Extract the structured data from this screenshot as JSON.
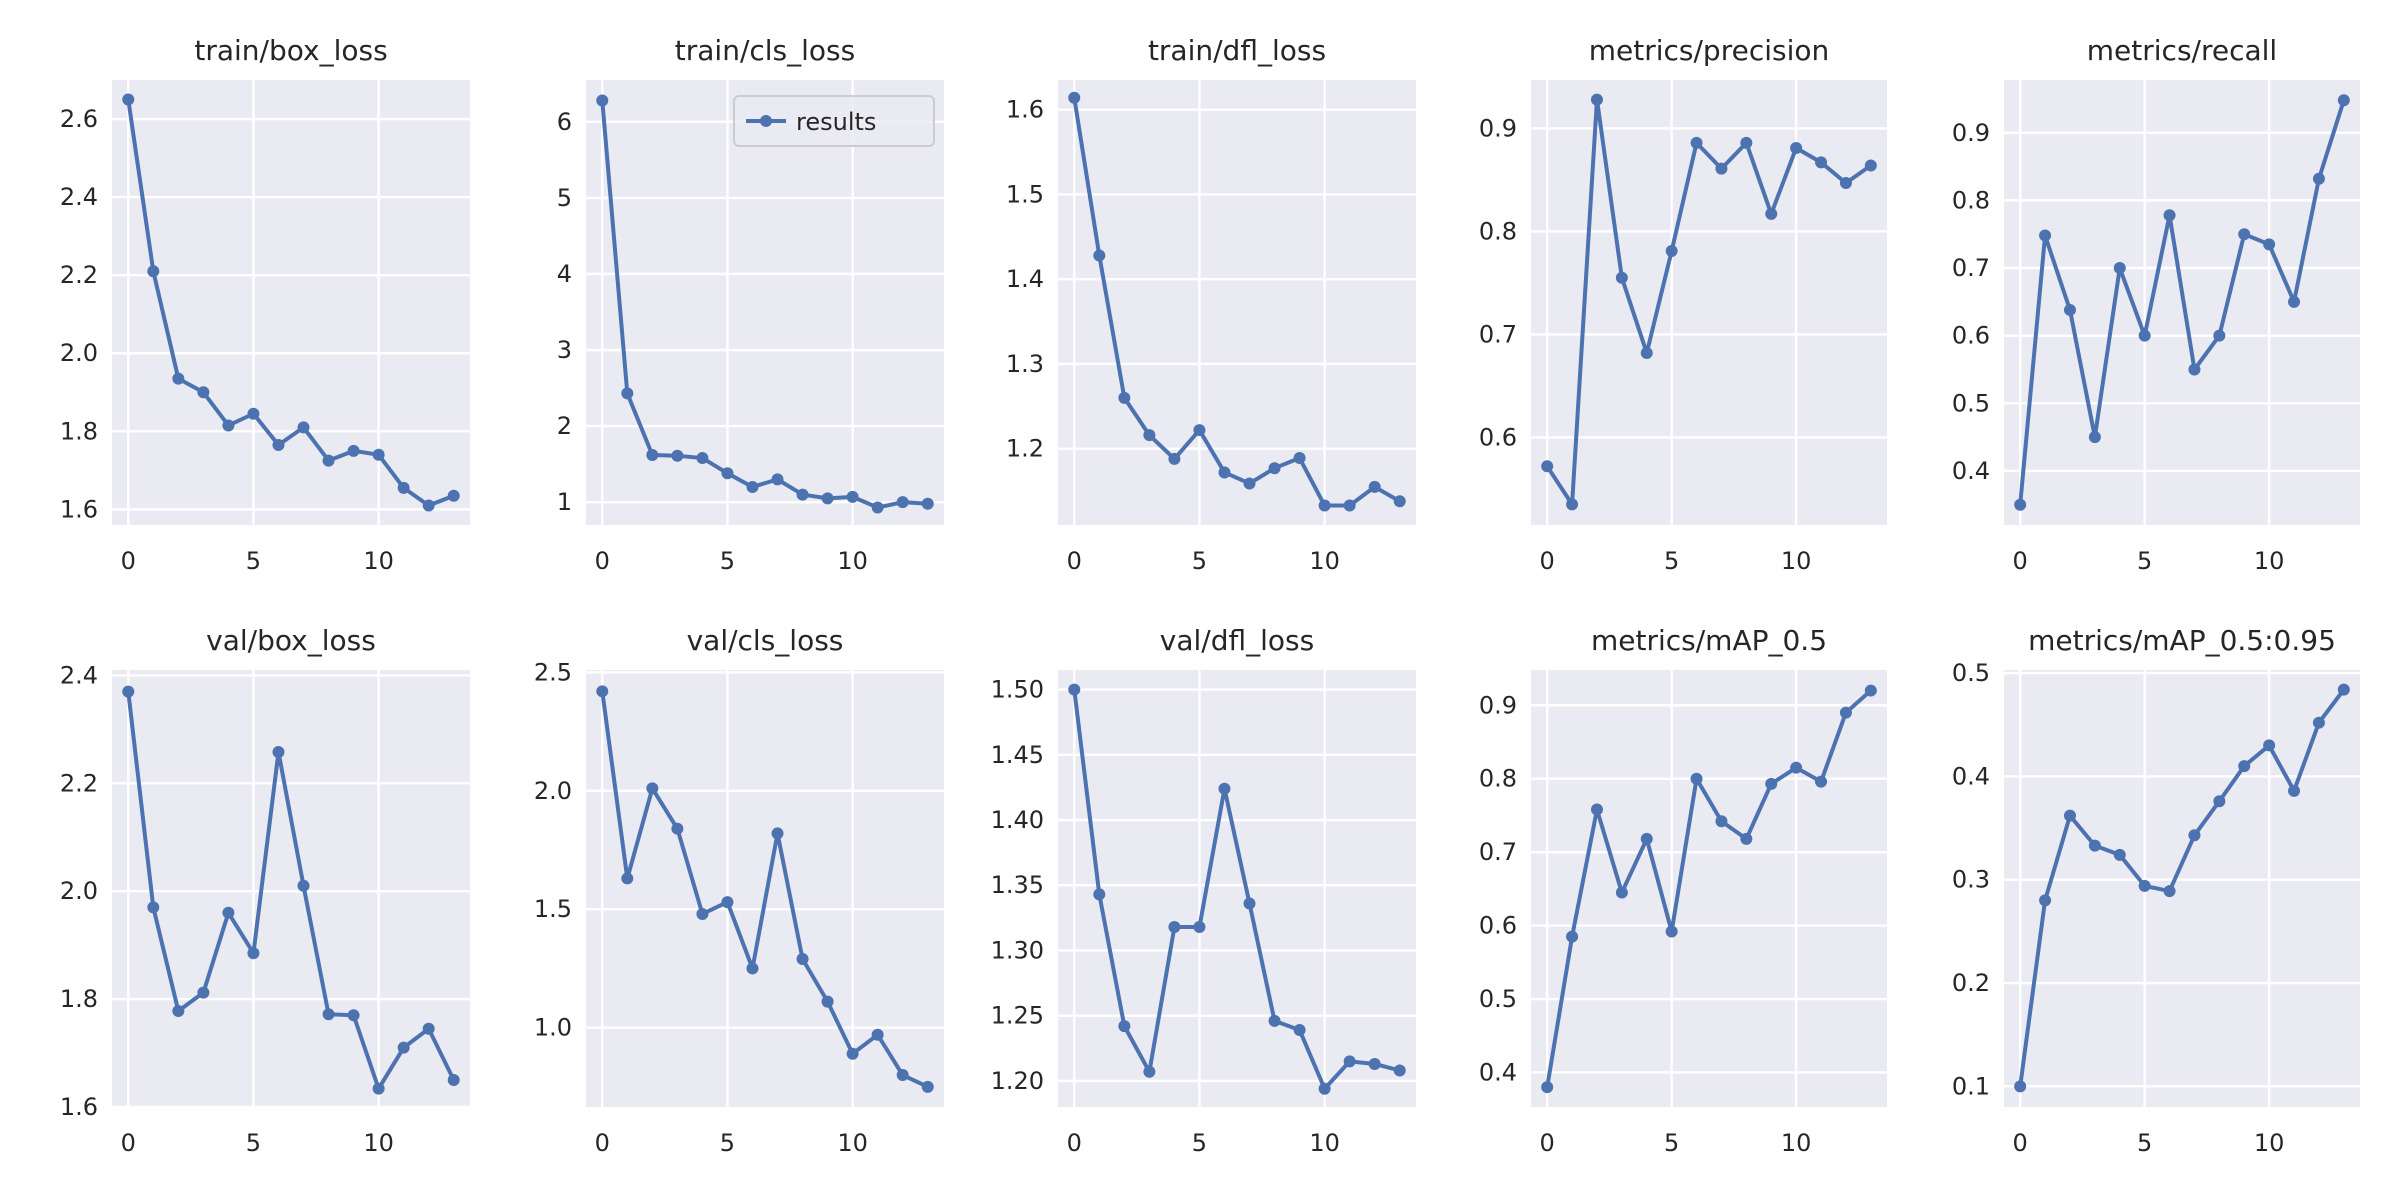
{
  "chart_data": [
    {
      "type": "line",
      "title": "train/box_loss",
      "x": [
        0,
        1,
        2,
        3,
        4,
        5,
        6,
        7,
        8,
        9,
        10,
        11,
        12,
        13
      ],
      "values": [
        2.65,
        2.21,
        1.935,
        1.9,
        1.815,
        1.845,
        1.765,
        1.81,
        1.725,
        1.75,
        1.74,
        1.655,
        1.61,
        1.635
      ],
      "ylim": [
        1.56,
        2.7
      ],
      "yticks": [
        "1.6",
        "1.8",
        "2.0",
        "2.2",
        "2.4",
        "2.6"
      ],
      "xticks": [
        "0",
        "5",
        "10"
      ]
    },
    {
      "type": "line",
      "title": "train/cls_loss",
      "x": [
        0,
        1,
        2,
        3,
        4,
        5,
        6,
        7,
        8,
        9,
        10,
        11,
        12,
        13
      ],
      "values": [
        6.28,
        2.43,
        1.62,
        1.61,
        1.58,
        1.38,
        1.2,
        1.3,
        1.1,
        1.05,
        1.07,
        0.93,
        1.0,
        0.98
      ],
      "ylim": [
        0.7,
        6.55
      ],
      "yticks": [
        "1",
        "2",
        "3",
        "4",
        "5",
        "6"
      ],
      "xticks": [
        "0",
        "5",
        "10"
      ],
      "legend": {
        "label": "results",
        "position": "upper right"
      }
    },
    {
      "type": "line",
      "title": "train/dfl_loss",
      "x": [
        0,
        1,
        2,
        3,
        4,
        5,
        6,
        7,
        8,
        9,
        10,
        11,
        12,
        13
      ],
      "values": [
        1.614,
        1.428,
        1.26,
        1.216,
        1.188,
        1.222,
        1.172,
        1.159,
        1.177,
        1.189,
        1.133,
        1.133,
        1.155,
        1.138
      ],
      "ylim": [
        1.11,
        1.635
      ],
      "yticks": [
        "1.2",
        "1.3",
        "1.4",
        "1.5",
        "1.6"
      ],
      "xticks": [
        "0",
        "5",
        "10"
      ]
    },
    {
      "type": "line",
      "title": "metrics/precision",
      "x": [
        0,
        1,
        2,
        3,
        4,
        5,
        6,
        7,
        8,
        9,
        10,
        11,
        12,
        13
      ],
      "values": [
        0.572,
        0.535,
        0.928,
        0.755,
        0.682,
        0.781,
        0.886,
        0.861,
        0.886,
        0.817,
        0.881,
        0.867,
        0.847,
        0.864
      ],
      "ylim": [
        0.515,
        0.947
      ],
      "yticks": [
        "0.6",
        "0.7",
        "0.8",
        "0.9"
      ],
      "xticks": [
        "0",
        "5",
        "10"
      ]
    },
    {
      "type": "line",
      "title": "metrics/recall",
      "x": [
        0,
        1,
        2,
        3,
        4,
        5,
        6,
        7,
        8,
        9,
        10,
        11,
        12,
        13
      ],
      "values": [
        0.35,
        0.748,
        0.638,
        0.45,
        0.7,
        0.6,
        0.778,
        0.55,
        0.6,
        0.75,
        0.735,
        0.65,
        0.832,
        0.948
      ],
      "ylim": [
        0.32,
        0.978
      ],
      "yticks": [
        "0.4",
        "0.5",
        "0.6",
        "0.7",
        "0.8",
        "0.9"
      ],
      "xticks": [
        "0",
        "5",
        "10"
      ]
    },
    {
      "type": "line",
      "title": "val/box_loss",
      "x": [
        0,
        1,
        2,
        3,
        4,
        5,
        6,
        7,
        8,
        9,
        10,
        11,
        12,
        13
      ],
      "values": [
        2.37,
        1.97,
        1.778,
        1.812,
        1.96,
        1.885,
        2.258,
        2.01,
        1.772,
        1.77,
        1.634,
        1.71,
        1.745,
        1.65
      ],
      "ylim": [
        1.6,
        2.41
      ],
      "yticks": [
        "1.6",
        "1.8",
        "2.0",
        "2.2",
        "2.4"
      ],
      "xticks": [
        "0",
        "5",
        "10"
      ]
    },
    {
      "type": "line",
      "title": "val/cls_loss",
      "x": [
        0,
        1,
        2,
        3,
        4,
        5,
        6,
        7,
        8,
        9,
        10,
        11,
        12,
        13
      ],
      "values": [
        2.42,
        1.63,
        2.01,
        1.84,
        1.48,
        1.53,
        1.25,
        1.82,
        1.29,
        1.11,
        0.89,
        0.97,
        0.8,
        0.75
      ],
      "ylim": [
        0.665,
        2.51
      ],
      "yticks": [
        "1.0",
        "1.5",
        "2.0",
        "2.5"
      ],
      "xticks": [
        "0",
        "5",
        "10"
      ]
    },
    {
      "type": "line",
      "title": "val/dfl_loss",
      "x": [
        0,
        1,
        2,
        3,
        4,
        5,
        6,
        7,
        8,
        9,
        10,
        11,
        12,
        13
      ],
      "values": [
        1.5,
        1.343,
        1.242,
        1.207,
        1.318,
        1.318,
        1.424,
        1.336,
        1.246,
        1.239,
        1.194,
        1.215,
        1.213,
        1.208
      ],
      "ylim": [
        1.18,
        1.515
      ],
      "yticks": [
        "1.20",
        "1.25",
        "1.30",
        "1.35",
        "1.40",
        "1.45",
        "1.50"
      ],
      "xticks": [
        "0",
        "5",
        "10"
      ]
    },
    {
      "type": "line",
      "title": "metrics/mAP_0.5",
      "x": [
        0,
        1,
        2,
        3,
        4,
        5,
        6,
        7,
        8,
        9,
        10,
        11,
        12,
        13
      ],
      "values": [
        0.38,
        0.585,
        0.758,
        0.645,
        0.718,
        0.592,
        0.8,
        0.742,
        0.718,
        0.793,
        0.815,
        0.796,
        0.89,
        0.92
      ],
      "ylim": [
        0.353,
        0.948
      ],
      "yticks": [
        "0.4",
        "0.5",
        "0.6",
        "0.7",
        "0.8",
        "0.9"
      ],
      "xticks": [
        "0",
        "5",
        "10"
      ]
    },
    {
      "type": "line",
      "title": "metrics/mAP_0.5:0.95",
      "x": [
        0,
        1,
        2,
        3,
        4,
        5,
        6,
        7,
        8,
        9,
        10,
        11,
        12,
        13
      ],
      "values": [
        0.1,
        0.28,
        0.362,
        0.333,
        0.324,
        0.294,
        0.289,
        0.343,
        0.376,
        0.41,
        0.43,
        0.386,
        0.452,
        0.484
      ],
      "ylim": [
        0.08,
        0.503
      ],
      "yticks": [
        "0.1",
        "0.2",
        "0.3",
        "0.4",
        "0.5"
      ],
      "xticks": [
        "0",
        "5",
        "10"
      ]
    }
  ],
  "colors": {
    "line": "#4C72B0",
    "axes_bg": "#EAEAF2",
    "grid": "#FFFFFF"
  },
  "grid": true
}
